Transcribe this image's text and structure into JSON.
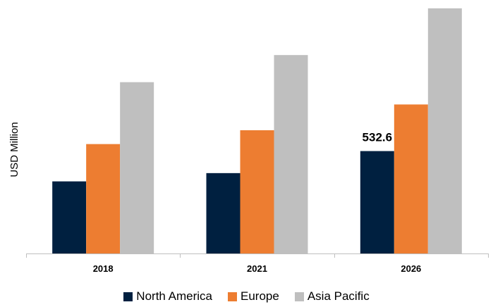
{
  "chart_data": {
    "type": "bar",
    "categories": [
      "2018",
      "2021",
      "2026"
    ],
    "ylabel": "USD Million",
    "xlabel": "",
    "title": "",
    "ylim": [
      0,
      1300
    ],
    "grid": false,
    "legend_position": "bottom",
    "series": [
      {
        "name": "North America",
        "color": "#002040",
        "values": [
          375,
          418,
          532.6
        ]
      },
      {
        "name": "Europe",
        "color": "#ED7D31",
        "values": [
          569,
          641,
          775
        ]
      },
      {
        "name": "Asia Pacific",
        "color": "#BFBFBF",
        "values": [
          891,
          1032,
          1275
        ]
      }
    ],
    "data_labels": [
      {
        "series": 0,
        "category": 2,
        "text": "532.6"
      }
    ]
  }
}
